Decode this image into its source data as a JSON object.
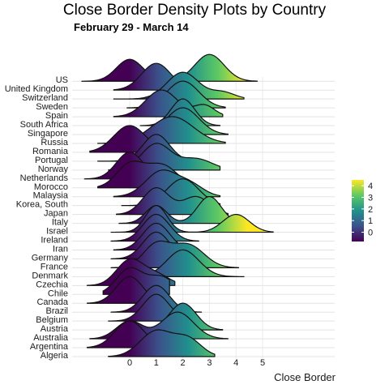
{
  "chart_data": {
    "type": "ridgeline",
    "title": "Close Border Density Plots by Country",
    "subtitle": "February 29 - March 14",
    "xlabel": "Close Border",
    "ylabel": "",
    "x_ticks": [
      0,
      1,
      2,
      3,
      4,
      5
    ],
    "xlim": [
      -2.2,
      7.7
    ],
    "grid": true,
    "colorbar": {
      "palette": "viridis",
      "range": [
        -0.8,
        4.5
      ],
      "ticks": [
        0,
        1,
        2,
        3,
        4
      ],
      "colors": [
        "#440154",
        "#3b528b",
        "#21908d",
        "#5dc963",
        "#fde725"
      ],
      "placement": "right"
    },
    "countries": [
      "US",
      "United Kingdom",
      "Switzerland",
      "Sweden",
      "Spain",
      "South Africa",
      "Singapore",
      "Russia",
      "Romania",
      "Portugal",
      "Norway",
      "Netherlands",
      "Morocco",
      "Malaysia",
      "Korea, South",
      "Japan",
      "Italy",
      "Israel",
      "Ireland",
      "Iran",
      "Germany",
      "France",
      "Denmark",
      "Czechia",
      "Chile",
      "Canada",
      "Brazil",
      "Belgium",
      "Austria",
      "Australia",
      "Argentina",
      "Algeria"
    ],
    "series": [
      {
        "country": "US",
        "peaks": [
          {
            "mean": 0.0,
            "sd": 0.5,
            "w": 0.45
          },
          {
            "mean": 3.0,
            "sd": 0.55,
            "w": 0.55
          }
        ],
        "range": [
          -1.8,
          4.8
        ]
      },
      {
        "country": "United Kingdom",
        "peaks": [
          {
            "mean": 1.0,
            "sd": 0.55,
            "w": 1.0
          }
        ],
        "range": [
          -0.6,
          2.5
        ]
      },
      {
        "country": "Switzerland",
        "peaks": [
          {
            "mean": 2.0,
            "sd": 0.6,
            "w": 0.8
          },
          {
            "mean": 3.5,
            "sd": 0.45,
            "w": 0.2
          }
        ],
        "range": [
          -0.6,
          4.3
        ]
      },
      {
        "country": "Sweden",
        "peaks": [
          {
            "mean": 2.0,
            "sd": 0.6,
            "w": 1.0
          }
        ],
        "range": [
          -0.1,
          3.6
        ]
      },
      {
        "country": "Spain",
        "peaks": [
          {
            "mean": 1.2,
            "sd": 0.6,
            "w": 0.7
          },
          {
            "mean": 2.8,
            "sd": 0.4,
            "w": 0.3
          }
        ],
        "range": [
          -0.6,
          3.5
        ]
      },
      {
        "country": "South Africa",
        "peaks": [
          {
            "mean": 2.0,
            "sd": 0.45,
            "w": 1.0
          }
        ],
        "range": [
          0.4,
          3.4
        ]
      },
      {
        "country": "Singapore",
        "peaks": [
          {
            "mean": 2.0,
            "sd": 0.6,
            "w": 1.0
          }
        ],
        "range": [
          0.3,
          3.7
        ]
      },
      {
        "country": "Russia",
        "peaks": [
          {
            "mean": 1.6,
            "sd": 0.8,
            "w": 1.0
          }
        ],
        "range": [
          -1.2,
          3.6
        ]
      },
      {
        "country": "Romania",
        "peaks": [
          {
            "mean": 0.0,
            "sd": 0.6,
            "w": 1.0
          }
        ],
        "range": [
          -1.5,
          1.6
        ]
      },
      {
        "country": "Portugal",
        "peaks": [
          {
            "mean": 1.0,
            "sd": 0.5,
            "w": 1.0
          }
        ],
        "range": [
          -1.2,
          2.7
        ]
      },
      {
        "country": "Norway",
        "peaks": [
          {
            "mean": 1.0,
            "sd": 0.55,
            "w": 0.7
          },
          {
            "mean": 2.5,
            "sd": 0.6,
            "w": 0.3
          }
        ],
        "range": [
          -0.8,
          3.4
        ]
      },
      {
        "country": "Netherlands",
        "peaks": [
          {
            "mean": 0.0,
            "sd": 0.5,
            "w": 1.0
          }
        ],
        "range": [
          -1.7,
          1.3
        ]
      },
      {
        "country": "Morocco",
        "peaks": [
          {
            "mean": 0.0,
            "sd": 0.5,
            "w": 0.5
          },
          {
            "mean": 1.2,
            "sd": 0.6,
            "w": 0.5
          }
        ],
        "range": [
          -1.2,
          2.5
        ]
      },
      {
        "country": "Malaysia",
        "peaks": [
          {
            "mean": 1.2,
            "sd": 0.6,
            "w": 0.7
          },
          {
            "mean": 2.3,
            "sd": 0.5,
            "w": 0.3
          }
        ],
        "range": [
          -0.6,
          3.4
        ]
      },
      {
        "country": "Korea, South",
        "peaks": [
          {
            "mean": 2.0,
            "sd": 0.6,
            "w": 1.0
          }
        ],
        "range": [
          -0.3,
          3.4
        ]
      },
      {
        "country": "Japan",
        "peaks": [
          {
            "mean": 1.0,
            "sd": 0.5,
            "w": 0.6
          },
          {
            "mean": 2.5,
            "sd": 0.5,
            "w": 0.4
          }
        ],
        "range": [
          -0.5,
          3.7
        ]
      },
      {
        "country": "Italy",
        "peaks": [
          {
            "mean": 1.0,
            "sd": 0.4,
            "w": 0.4
          },
          {
            "mean": 3.0,
            "sd": 0.45,
            "w": 0.6
          }
        ],
        "range": [
          -0.4,
          4.5
        ]
      },
      {
        "country": "Israel",
        "peaks": [
          {
            "mean": 1.0,
            "sd": 0.4,
            "w": 0.6
          },
          {
            "mean": 4.0,
            "sd": 0.5,
            "w": 0.4
          }
        ],
        "range": [
          -0.7,
          5.4
        ]
      },
      {
        "country": "Ireland",
        "peaks": [
          {
            "mean": 1.0,
            "sd": 0.5,
            "w": 1.0
          }
        ],
        "range": [
          -0.7,
          2.6
        ]
      },
      {
        "country": "Iran",
        "peaks": [
          {
            "mean": 1.0,
            "sd": 0.5,
            "w": 1.0
          }
        ],
        "range": [
          -0.6,
          2.5
        ]
      },
      {
        "country": "Germany",
        "peaks": [
          {
            "mean": 1.0,
            "sd": 0.5,
            "w": 1.0
          }
        ],
        "range": [
          -0.7,
          2.6
        ]
      },
      {
        "country": "France",
        "peaks": [
          {
            "mean": 1.0,
            "sd": 0.5,
            "w": 0.5
          },
          {
            "mean": 2.2,
            "sd": 0.6,
            "w": 0.5
          }
        ],
        "range": [
          -0.7,
          4.1
        ]
      },
      {
        "country": "Denmark",
        "peaks": [
          {
            "mean": 2.0,
            "sd": 0.6,
            "w": 1.0
          }
        ],
        "range": [
          0.0,
          4.3
        ]
      },
      {
        "country": "Czechia",
        "peaks": [
          {
            "mean": 0.0,
            "sd": 0.5,
            "w": 0.7
          },
          {
            "mean": 1.0,
            "sd": 0.5,
            "w": 0.3
          }
        ],
        "range": [
          -1.6,
          1.7
        ]
      },
      {
        "country": "Chile",
        "peaks": [
          {
            "mean": 0.0,
            "sd": 0.5,
            "w": 0.6
          },
          {
            "mean": 1.2,
            "sd": 0.5,
            "w": 0.4
          }
        ],
        "range": [
          -1.0,
          1.5
        ]
      },
      {
        "country": "Canada",
        "peaks": [
          {
            "mean": 0.0,
            "sd": 0.5,
            "w": 1.0
          }
        ],
        "range": [
          -1.6,
          1.6
        ]
      },
      {
        "country": "Brazil",
        "peaks": [
          {
            "mean": 1.0,
            "sd": 0.5,
            "w": 1.0
          }
        ],
        "range": [
          -0.7,
          2.7
        ]
      },
      {
        "country": "Belgium",
        "peaks": [
          {
            "mean": 1.0,
            "sd": 0.5,
            "w": 1.0
          }
        ],
        "range": [
          -0.8,
          2.4
        ]
      },
      {
        "country": "Austria",
        "peaks": [
          {
            "mean": 2.0,
            "sd": 0.5,
            "w": 1.0
          }
        ],
        "range": [
          0.2,
          3.5
        ]
      },
      {
        "country": "Australia",
        "peaks": [
          {
            "mean": 0.0,
            "sd": 0.5,
            "w": 0.4
          },
          {
            "mean": 1.8,
            "sd": 0.6,
            "w": 0.6
          }
        ],
        "range": [
          -1.5,
          3.7
        ]
      },
      {
        "country": "Argentina",
        "peaks": [
          {
            "mean": 0.0,
            "sd": 0.55,
            "w": 1.0
          }
        ],
        "range": [
          -1.6,
          2.3
        ]
      },
      {
        "country": "Algeria",
        "peaks": [
          {
            "mean": 1.0,
            "sd": 0.6,
            "w": 0.6
          },
          {
            "mean": 2.2,
            "sd": 0.5,
            "w": 0.4
          }
        ],
        "range": [
          -0.8,
          3.2
        ]
      }
    ]
  }
}
